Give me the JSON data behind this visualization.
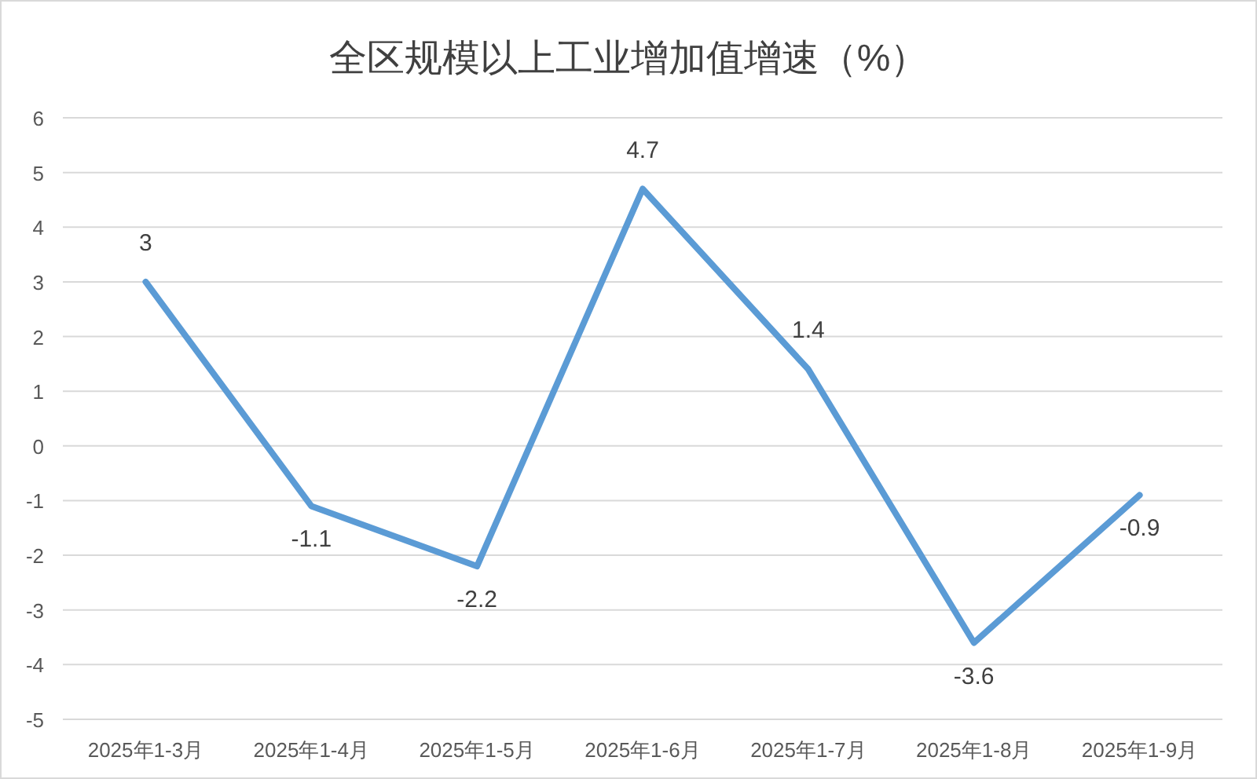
{
  "chart_data": {
    "type": "line",
    "title": "全区规模以上工业增加值增速（%）",
    "categories": [
      "2025年1-3月",
      "2025年1-4月",
      "2025年1-5月",
      "2025年1-6月",
      "2025年1-7月",
      "2025年1-8月",
      "2025年1-9月"
    ],
    "series": [
      {
        "color": "#5b9bd5",
        "values": [
          3,
          -1.1,
          -2.2,
          4.7,
          1.4,
          -3.6,
          -0.9
        ]
      }
    ],
    "ylim": [
      -5,
      6
    ],
    "yticks": [
      -5,
      -4,
      -3,
      -2,
      -1,
      0,
      1,
      2,
      3,
      4,
      5,
      6
    ],
    "grid": "y",
    "data_labels": true,
    "marker": "none",
    "line_style": "solid"
  }
}
